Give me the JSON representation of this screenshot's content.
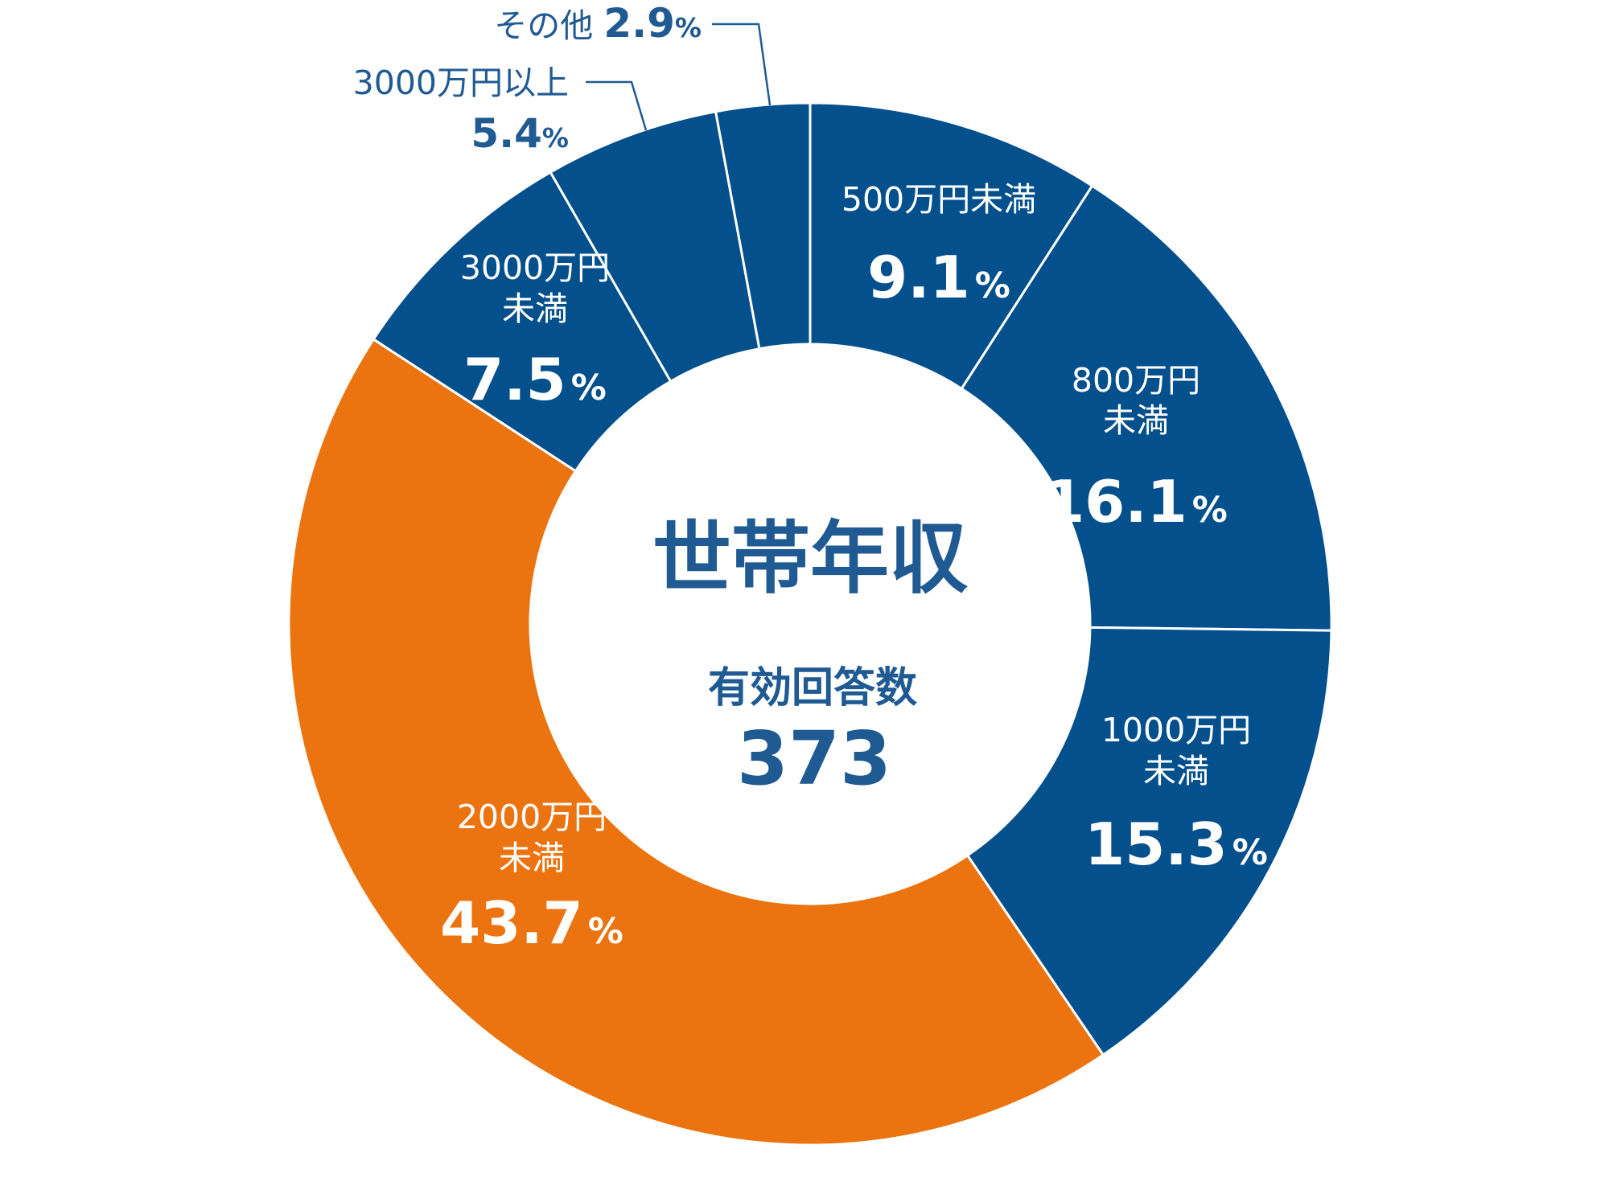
{
  "chart_data": {
    "type": "pie",
    "title": "世帯年収",
    "center": {
      "title": "世帯年収",
      "subtitle": "有効回答数",
      "value": "373"
    },
    "unit": "%",
    "slices": [
      {
        "label_lines": [
          "500万円未満"
        ],
        "value": 9.1,
        "value_text": "9.1",
        "color": "#04508d",
        "label_position": "inside"
      },
      {
        "label_lines": [
          "800万円",
          "未満"
        ],
        "value": 16.1,
        "value_text": "16.1",
        "color": "#04508d",
        "label_position": "inside"
      },
      {
        "label_lines": [
          "1000万円",
          "未満"
        ],
        "value": 15.3,
        "value_text": "15.3",
        "color": "#04508d",
        "label_position": "inside"
      },
      {
        "label_lines": [
          "2000万円",
          "未満"
        ],
        "value": 43.7,
        "value_text": "43.7",
        "color": "#ec7410",
        "label_position": "inside"
      },
      {
        "label_lines": [
          "3000万円",
          "未満"
        ],
        "value": 7.5,
        "value_text": "7.5",
        "color": "#04508d",
        "label_position": "inside"
      },
      {
        "label_lines": [
          "3000万円以上"
        ],
        "value": 5.4,
        "value_text": "5.4",
        "color": "#04508d",
        "label_position": "outside"
      },
      {
        "label_lines": [
          "その他"
        ],
        "value": 2.9,
        "value_text": "2.9",
        "color": "#04508d",
        "label_position": "outside"
      }
    ],
    "colors": {
      "primary": "#04508d",
      "highlight": "#ec7410",
      "text": "#1f5a93",
      "separator": "#ffffff"
    }
  }
}
